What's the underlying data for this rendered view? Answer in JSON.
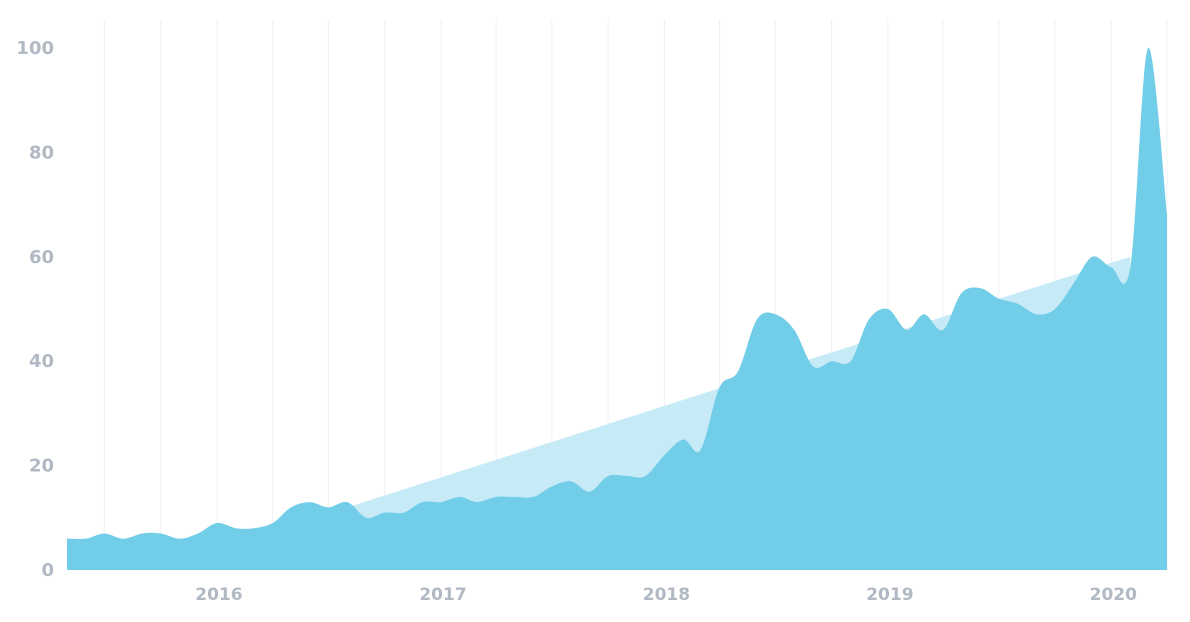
{
  "chart_data": {
    "type": "area",
    "title": "",
    "xlabel": "",
    "ylabel": "",
    "ylim": [
      0,
      100
    ],
    "y_ticks": [
      "0",
      "20",
      "40",
      "60",
      "80",
      "100"
    ],
    "x_ticks": [
      {
        "label": "2016",
        "date": "2016-01-01"
      },
      {
        "label": "2017",
        "date": "2017-01-01"
      },
      {
        "label": "2018",
        "date": "2018-01-01"
      },
      {
        "label": "2019",
        "date": "2019-01-01"
      },
      {
        "label": "2020",
        "date": "2020-01-01"
      }
    ],
    "grid": "vertical",
    "colors": {
      "series": "#72cde9",
      "trend": "#c7ebf6",
      "tick": "#b1b9c4",
      "grid": "#eef0f3"
    },
    "series": [
      {
        "values": [
          {
            "x": "2015-05-01",
            "y": 6
          },
          {
            "x": "2015-06-01",
            "y": 6
          },
          {
            "x": "2015-07-01",
            "y": 7
          },
          {
            "x": "2015-08-01",
            "y": 6
          },
          {
            "x": "2015-09-01",
            "y": 7
          },
          {
            "x": "2015-10-01",
            "y": 7
          },
          {
            "x": "2015-11-01",
            "y": 6
          },
          {
            "x": "2015-12-01",
            "y": 7
          },
          {
            "x": "2016-01-01",
            "y": 9
          },
          {
            "x": "2016-02-01",
            "y": 8
          },
          {
            "x": "2016-03-01",
            "y": 8
          },
          {
            "x": "2016-04-01",
            "y": 9
          },
          {
            "x": "2016-05-01",
            "y": 12
          },
          {
            "x": "2016-06-01",
            "y": 13
          },
          {
            "x": "2016-07-01",
            "y": 12
          },
          {
            "x": "2016-08-01",
            "y": 13
          },
          {
            "x": "2016-09-01",
            "y": 10
          },
          {
            "x": "2016-10-01",
            "y": 11
          },
          {
            "x": "2016-11-01",
            "y": 11
          },
          {
            "x": "2016-12-01",
            "y": 13
          },
          {
            "x": "2017-01-01",
            "y": 13
          },
          {
            "x": "2017-02-01",
            "y": 14
          },
          {
            "x": "2017-03-01",
            "y": 13
          },
          {
            "x": "2017-04-01",
            "y": 14
          },
          {
            "x": "2017-05-01",
            "y": 14
          },
          {
            "x": "2017-06-01",
            "y": 14
          },
          {
            "x": "2017-07-01",
            "y": 16
          },
          {
            "x": "2017-08-01",
            "y": 17
          },
          {
            "x": "2017-09-01",
            "y": 15
          },
          {
            "x": "2017-10-01",
            "y": 18
          },
          {
            "x": "2017-11-01",
            "y": 18
          },
          {
            "x": "2017-12-01",
            "y": 18
          },
          {
            "x": "2018-01-01",
            "y": 22
          },
          {
            "x": "2018-02-01",
            "y": 25
          },
          {
            "x": "2018-03-01",
            "y": 23
          },
          {
            "x": "2018-04-01",
            "y": 35
          },
          {
            "x": "2018-05-01",
            "y": 38
          },
          {
            "x": "2018-06-01",
            "y": 48
          },
          {
            "x": "2018-07-01",
            "y": 49
          },
          {
            "x": "2018-08-01",
            "y": 46
          },
          {
            "x": "2018-09-01",
            "y": 39
          },
          {
            "x": "2018-10-01",
            "y": 40
          },
          {
            "x": "2018-11-01",
            "y": 40
          },
          {
            "x": "2018-12-01",
            "y": 48
          },
          {
            "x": "2019-01-01",
            "y": 50
          },
          {
            "x": "2019-02-01",
            "y": 46
          },
          {
            "x": "2019-03-01",
            "y": 49
          },
          {
            "x": "2019-04-01",
            "y": 46
          },
          {
            "x": "2019-05-01",
            "y": 53
          },
          {
            "x": "2019-06-01",
            "y": 54
          },
          {
            "x": "2019-07-01",
            "y": 52
          },
          {
            "x": "2019-08-01",
            "y": 51
          },
          {
            "x": "2019-09-01",
            "y": 49
          },
          {
            "x": "2019-10-01",
            "y": 50
          },
          {
            "x": "2019-11-01",
            "y": 55
          },
          {
            "x": "2019-12-01",
            "y": 60
          },
          {
            "x": "2020-01-01",
            "y": 58
          },
          {
            "x": "2020-02-01",
            "y": 58
          },
          {
            "x": "2020-03-01",
            "y": 100
          },
          {
            "x": "2020-04-01",
            "y": 68
          }
        ]
      },
      {
        "style": "trend-band",
        "values": [
          {
            "x": "2016-08-01",
            "y": 12
          },
          {
            "x": "2020-02-01",
            "y": 60
          }
        ]
      }
    ]
  }
}
